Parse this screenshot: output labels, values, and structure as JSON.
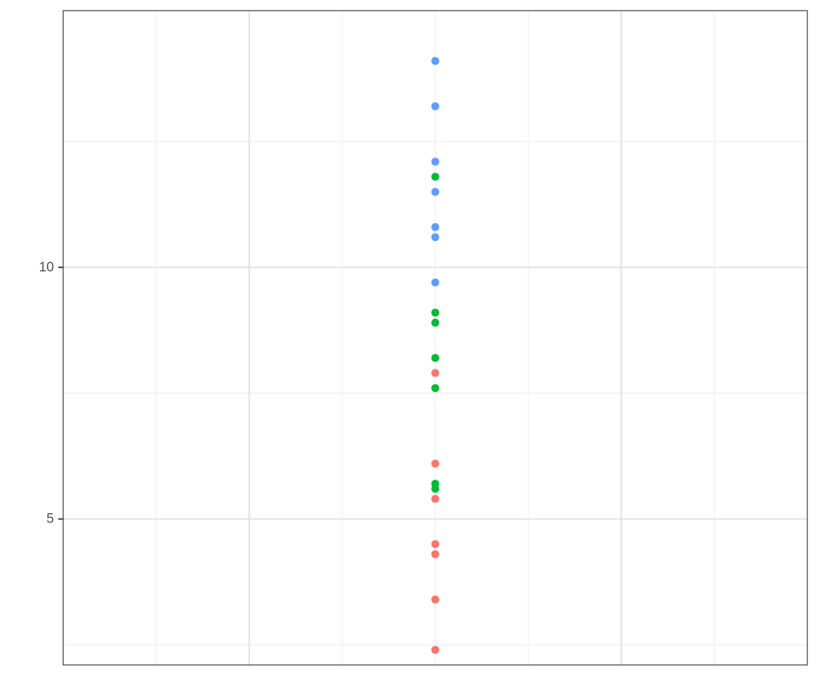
{
  "chart_data": {
    "type": "scatter",
    "title": "",
    "xlabel": "",
    "ylabel": "",
    "xlim": [
      -2,
      2
    ],
    "ylim": [
      2.1,
      15.1
    ],
    "x_major_ticks": [
      -1,
      1
    ],
    "x_minor_ticks": [
      -1.5,
      -0.5,
      0,
      0.5,
      1.5
    ],
    "y_major_ticks": [
      5,
      10
    ],
    "y_minor_ticks": [
      2.5,
      7.5,
      12.5
    ],
    "y_tick_labels": [
      "5",
      "10"
    ],
    "grid": true,
    "legend": "none",
    "series": [
      {
        "color": "#F8766D",
        "points": [
          {
            "x": 0,
            "y": 2.4
          },
          {
            "x": 0,
            "y": 3.4
          },
          {
            "x": 0,
            "y": 4.3
          },
          {
            "x": 0,
            "y": 4.5
          },
          {
            "x": 0,
            "y": 5.4
          },
          {
            "x": 0,
            "y": 6.1
          },
          {
            "x": 0,
            "y": 7.9
          }
        ]
      },
      {
        "color": "#00BA38",
        "points": [
          {
            "x": 0,
            "y": 5.6
          },
          {
            "x": 0,
            "y": 5.7
          },
          {
            "x": 0,
            "y": 7.6
          },
          {
            "x": 0,
            "y": 8.2
          },
          {
            "x": 0,
            "y": 8.9
          },
          {
            "x": 0,
            "y": 9.1
          },
          {
            "x": 0,
            "y": 11.8
          }
        ]
      },
      {
        "color": "#619CFF",
        "points": [
          {
            "x": 0,
            "y": 9.7
          },
          {
            "x": 0,
            "y": 10.6
          },
          {
            "x": 0,
            "y": 10.8
          },
          {
            "x": 0,
            "y": 11.5
          },
          {
            "x": 0,
            "y": 12.1
          },
          {
            "x": 0,
            "y": 13.2
          },
          {
            "x": 0,
            "y": 14.1
          }
        ]
      }
    ]
  }
}
